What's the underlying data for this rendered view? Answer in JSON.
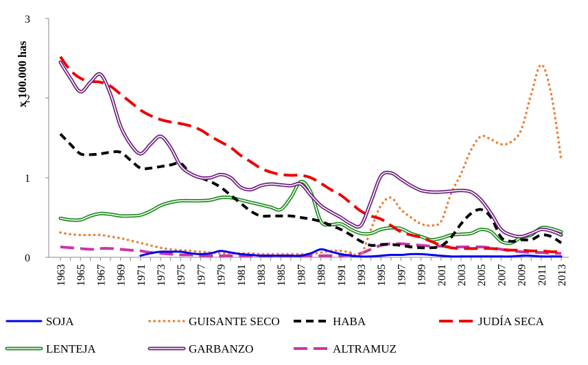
{
  "chart_data": {
    "type": "line",
    "ylabel": "x 100.000 has",
    "ylim": [
      0,
      3
    ],
    "yticks": [
      "0",
      "1",
      "2",
      "3"
    ],
    "x": [
      1963,
      1964,
      1965,
      1966,
      1967,
      1968,
      1969,
      1970,
      1971,
      1972,
      1973,
      1974,
      1975,
      1976,
      1977,
      1978,
      1979,
      1980,
      1981,
      1982,
      1983,
      1984,
      1985,
      1986,
      1987,
      1988,
      1989,
      1990,
      1991,
      1992,
      1993,
      1994,
      1995,
      1996,
      1997,
      1998,
      1999,
      2000,
      2001,
      2002,
      2003,
      2004,
      2005,
      2006,
      2007,
      2008,
      2009,
      2010,
      2011,
      2012,
      2013
    ],
    "xticks": [
      "1963",
      "1965",
      "1967",
      "1969",
      "1971",
      "1973",
      "1975",
      "1977",
      "1979",
      "1981",
      "1983",
      "1985",
      "1987",
      "1989",
      "1991",
      "1993",
      "1995",
      "1997",
      "1999",
      "2001",
      "2003",
      "2005",
      "2007",
      "2009",
      "2011",
      "2013"
    ],
    "grid": false,
    "legend_position": "bottom",
    "series": [
      {
        "name": "SOJA",
        "color": "#0000ee",
        "style": "solid",
        "values": [
          null,
          null,
          null,
          null,
          null,
          null,
          null,
          null,
          0.02,
          0.05,
          0.07,
          0.07,
          0.07,
          0.05,
          0.04,
          0.05,
          0.08,
          0.06,
          0.04,
          0.03,
          0.02,
          0.02,
          0.02,
          0.02,
          0.02,
          0.05,
          0.1,
          0.07,
          0.04,
          0.02,
          0.01,
          0.01,
          0.02,
          0.03,
          0.03,
          0.04,
          0.04,
          0.03,
          0.02,
          0.01,
          0.01,
          0.01,
          0.01,
          0.01,
          0.01,
          0.01,
          0.02,
          0.02,
          0.01,
          0.01,
          0.01
        ]
      },
      {
        "name": "GUISANTE SECO",
        "color": "#ed7d31",
        "style": "dotted",
        "values": [
          0.31,
          0.29,
          0.28,
          0.28,
          0.28,
          0.26,
          0.24,
          0.21,
          0.18,
          0.15,
          0.12,
          0.1,
          0.09,
          0.08,
          0.07,
          0.06,
          0.05,
          0.05,
          0.05,
          0.05,
          0.04,
          0.04,
          0.04,
          0.04,
          0.04,
          0.04,
          0.06,
          0.08,
          0.08,
          0.06,
          0.03,
          0.35,
          0.65,
          0.75,
          0.6,
          0.5,
          0.42,
          0.4,
          0.45,
          0.8,
          1.05,
          1.35,
          1.52,
          1.48,
          1.42,
          1.45,
          1.6,
          2.05,
          2.42,
          2.05,
          1.22
        ]
      },
      {
        "name": "HABA",
        "color": "#000000",
        "style": "dashed",
        "values": [
          1.55,
          1.42,
          1.3,
          1.29,
          1.3,
          1.32,
          1.32,
          1.22,
          1.12,
          1.12,
          1.14,
          1.16,
          1.18,
          1.05,
          1.0,
          0.95,
          0.88,
          0.78,
          0.68,
          0.58,
          0.52,
          0.52,
          0.52,
          0.52,
          0.5,
          0.48,
          0.45,
          0.4,
          0.35,
          0.28,
          0.2,
          0.15,
          0.16,
          0.16,
          0.15,
          0.13,
          0.12,
          0.12,
          0.14,
          0.25,
          0.42,
          0.55,
          0.6,
          0.5,
          0.25,
          0.2,
          0.22,
          0.22,
          0.28,
          0.26,
          0.18
        ]
      },
      {
        "name": "JUDÍA SECA",
        "color": "#ee0000",
        "style": "longdash",
        "values": [
          2.52,
          2.35,
          2.25,
          2.21,
          2.2,
          2.15,
          2.05,
          1.95,
          1.85,
          1.78,
          1.73,
          1.7,
          1.68,
          1.65,
          1.6,
          1.52,
          1.45,
          1.38,
          1.28,
          1.2,
          1.12,
          1.07,
          1.04,
          1.03,
          1.03,
          1.0,
          0.93,
          0.85,
          0.78,
          0.68,
          0.58,
          0.52,
          0.48,
          0.4,
          0.32,
          0.28,
          0.25,
          0.2,
          0.15,
          0.12,
          0.11,
          0.11,
          0.11,
          0.11,
          0.1,
          0.09,
          0.09,
          0.08,
          0.08,
          0.07,
          0.07
        ]
      },
      {
        "name": "LENTEJA",
        "color": "#1e8c1e",
        "style": "double",
        "values": [
          0.49,
          0.47,
          0.47,
          0.52,
          0.55,
          0.54,
          0.52,
          0.52,
          0.53,
          0.58,
          0.65,
          0.69,
          0.71,
          0.71,
          0.71,
          0.72,
          0.75,
          0.75,
          0.72,
          0.69,
          0.66,
          0.63,
          0.6,
          0.75,
          0.95,
          0.82,
          0.45,
          0.41,
          0.42,
          0.35,
          0.3,
          0.3,
          0.35,
          0.37,
          0.36,
          0.3,
          0.26,
          0.22,
          0.24,
          0.28,
          0.29,
          0.3,
          0.35,
          0.32,
          0.2,
          0.18,
          0.25,
          0.28,
          0.37,
          0.36,
          0.32
        ]
      },
      {
        "name": "GARBANZO",
        "color": "#6b1f7a",
        "style": "double",
        "values": [
          2.45,
          2.25,
          2.08,
          2.2,
          2.3,
          2.05,
          1.65,
          1.42,
          1.3,
          1.42,
          1.52,
          1.38,
          1.15,
          1.05,
          1.0,
          1.0,
          1.04,
          1.0,
          0.88,
          0.85,
          0.9,
          0.92,
          0.91,
          0.9,
          0.92,
          0.78,
          0.65,
          0.57,
          0.5,
          0.42,
          0.4,
          0.7,
          1.02,
          1.06,
          0.98,
          0.9,
          0.84,
          0.82,
          0.82,
          0.83,
          0.84,
          0.82,
          0.72,
          0.55,
          0.35,
          0.28,
          0.26,
          0.3,
          0.35,
          0.33,
          0.28
        ]
      },
      {
        "name": "ALTRAMUZ",
        "color": "#cc33aa",
        "style": "longdash",
        "values": [
          0.13,
          0.12,
          0.11,
          0.1,
          0.11,
          0.11,
          0.1,
          0.09,
          0.08,
          0.06,
          0.05,
          0.04,
          0.03,
          0.03,
          0.02,
          0.02,
          0.02,
          0.02,
          0.02,
          0.02,
          0.02,
          0.02,
          0.02,
          0.02,
          0.02,
          0.02,
          0.02,
          0.02,
          0.02,
          0.03,
          0.05,
          0.1,
          0.15,
          0.17,
          0.17,
          0.16,
          0.15,
          0.14,
          0.14,
          0.13,
          0.13,
          0.13,
          0.13,
          0.12,
          0.1,
          0.08,
          0.07,
          0.06,
          0.06,
          0.05,
          0.05
        ]
      }
    ]
  }
}
